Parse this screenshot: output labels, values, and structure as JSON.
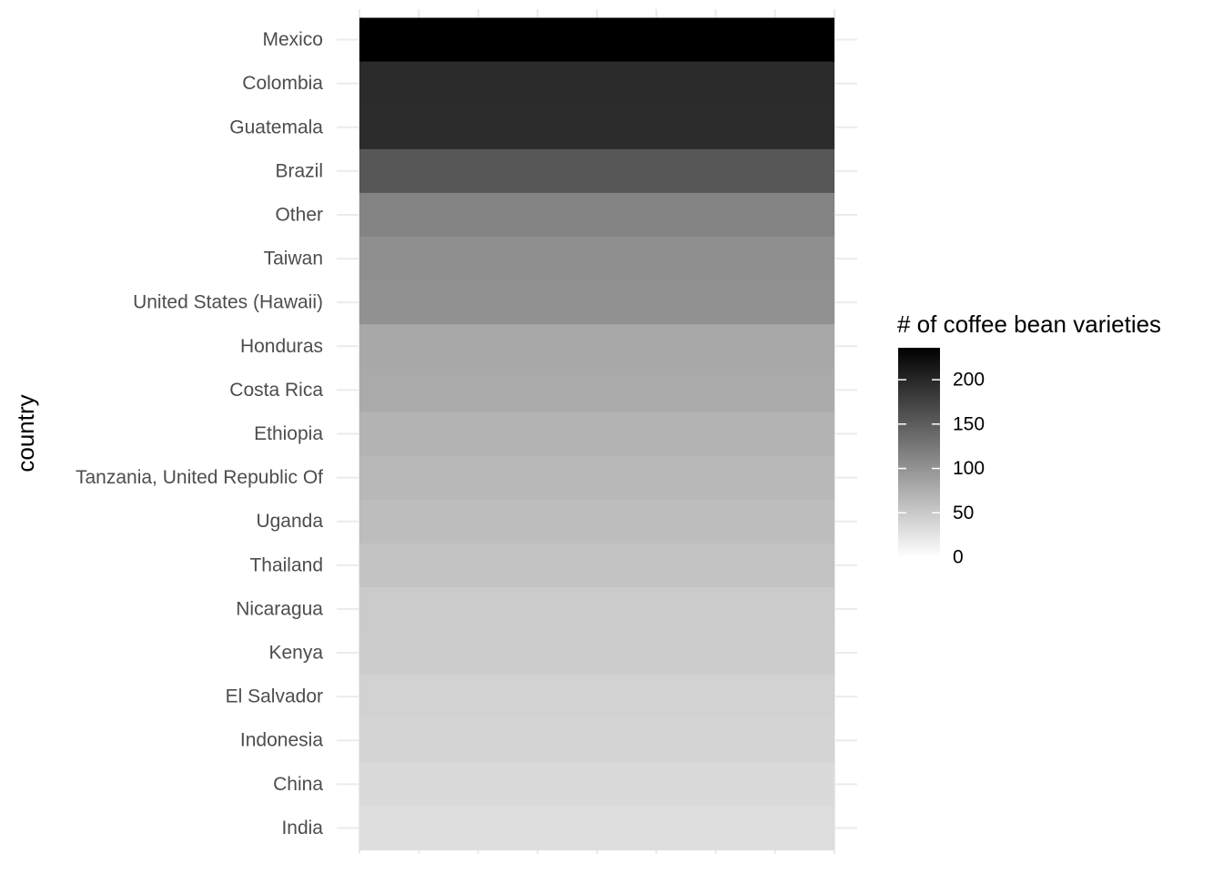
{
  "chart_data": {
    "type": "heatmap",
    "ylabel": "country",
    "xlabel": "",
    "categories": [
      "Mexico",
      "Colombia",
      "Guatemala",
      "Brazil",
      "Other",
      "Taiwan",
      "United States (Hawaii)",
      "Honduras",
      "Costa Rica",
      "Ethiopia",
      "Tanzania, United Republic Of",
      "Uganda",
      "Thailand",
      "Nicaragua",
      "Kenya",
      "El Salvador",
      "Indonesia",
      "China",
      "India"
    ],
    "values": [
      236,
      183,
      181,
      132,
      86,
      75,
      73,
      53,
      51,
      44,
      40,
      36,
      32,
      26,
      25,
      21,
      20,
      16,
      14
    ],
    "legend": {
      "title": "# of coffee bean varieties",
      "placement": "right",
      "ticks": [
        0,
        50,
        100,
        150,
        200
      ],
      "tick_labels": [
        "0",
        "50",
        "100",
        "150",
        "200"
      ],
      "range": [
        0,
        236
      ],
      "low_color": "#ffffff",
      "high_color": "#000000"
    },
    "grid": true,
    "background": "#ffffff",
    "grid_color": "#ebebeb"
  }
}
